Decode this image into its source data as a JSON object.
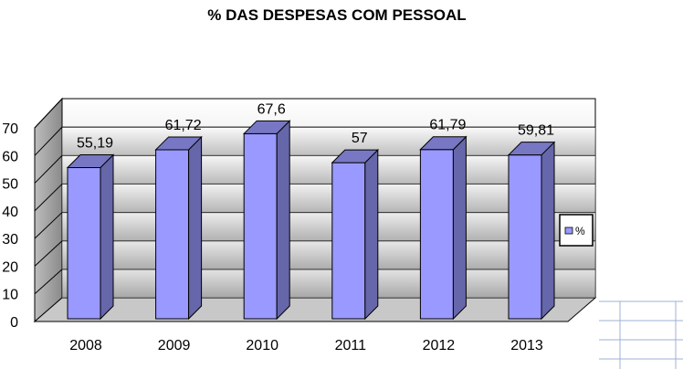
{
  "chart_data": {
    "type": "bar",
    "title": "% DAS DESPESAS COM PESSOAL",
    "categories": [
      "2008",
      "2009",
      "2010",
      "2011",
      "2012",
      "2013"
    ],
    "series": [
      {
        "name": "%",
        "values": [
          55.19,
          61.72,
          67.6,
          57,
          61.79,
          59.81
        ]
      }
    ],
    "data_labels": [
      "55,19",
      "61,72",
      "67,6",
      "57",
      "61,79",
      "59,81"
    ],
    "y_ticks": [
      "0",
      "10",
      "20",
      "30",
      "40",
      "50",
      "60",
      "70"
    ],
    "ylim": [
      0,
      70
    ],
    "xlabel": "",
    "ylabel": "",
    "grid": true,
    "legend": "right",
    "bar_color": "#9999ff",
    "bar_dark": "#6666aa",
    "style": "3d-column"
  }
}
